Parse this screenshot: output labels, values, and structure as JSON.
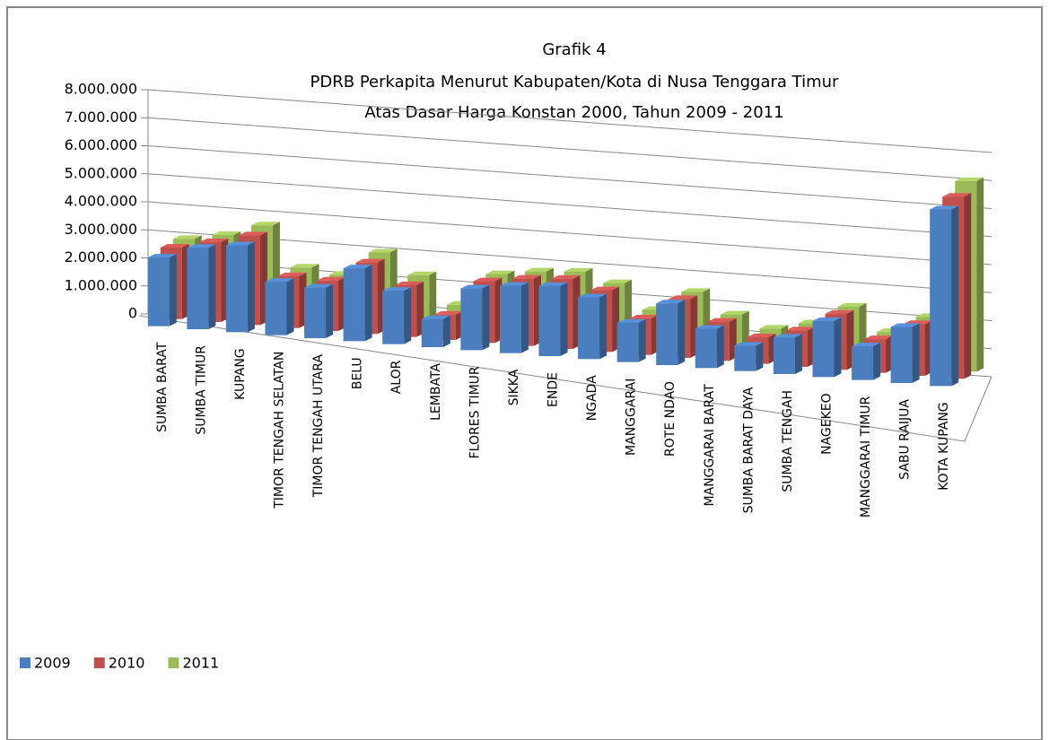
{
  "chart_data": {
    "type": "bar3d",
    "title": "Grafik 4",
    "subtitle": [
      "PDRB Perkapita Menurut Kabupaten/Kota di Nusa Tenggara Timur",
      "Atas Dasar Harga Konstan 2000, Tahun 2009 - 2011"
    ],
    "categories": [
      "SUMBA BARAT",
      "SUMBA TIMUR",
      "KUPANG",
      "TIMOR TENGAH SELATAN",
      "TIMOR TENGAH UTARA",
      "BELU",
      "ALOR",
      "LEMBATA",
      "FLORES TIMUR",
      "SIKKA",
      "ENDE",
      "NGADA",
      "MANGGARAI",
      "ROTE NDAO",
      "MANGGARAI BARAT",
      "SUMBA BARAT DAYA",
      "SUMBA TENGAH",
      "NAGEKEO",
      "MANGGARAI TIMUR",
      "SABU RAIJUA",
      "KOTA KUPANG"
    ],
    "series": [
      {
        "name": "2009",
        "color": "#4a7ebf",
        "values": [
          2450000,
          2900000,
          3100000,
          1900000,
          1800000,
          2600000,
          1900000,
          1000000,
          2200000,
          2400000,
          2500000,
          2200000,
          1400000,
          2200000,
          1400000,
          900000,
          1300000,
          2000000,
          1200000,
          2000000,
          6300000
        ]
      },
      {
        "name": "2010",
        "color": "#c0504d",
        "values": [
          2550000,
          2850000,
          3200000,
          1850000,
          1800000,
          2550000,
          1850000,
          900000,
          2200000,
          2400000,
          2500000,
          2200000,
          1300000,
          2100000,
          1400000,
          950000,
          1300000,
          2000000,
          1200000,
          1850000,
          6500000
        ]
      },
      {
        "name": "2011",
        "color": "#9bbb59",
        "values": [
          2600000,
          2850000,
          3300000,
          1900000,
          1750000,
          2650000,
          1950000,
          1000000,
          2200000,
          2400000,
          2500000,
          2200000,
          1350000,
          2100000,
          1400000,
          1000000,
          1300000,
          2000000,
          1200000,
          1850000,
          6800000
        ]
      }
    ],
    "ylim": [
      0,
      8000000
    ],
    "yticks": [
      0,
      {
        "value": 1000000,
        "label": "1.000.000"
      },
      {
        "value": 2000000,
        "label": "2.000.000"
      },
      {
        "value": 3000000,
        "label": "3.000.000"
      },
      {
        "value": 4000000,
        "label": "4.000.000"
      },
      {
        "value": 5000000,
        "label": "5.000.000"
      },
      {
        "value": 6000000,
        "label": "6.000.000"
      },
      {
        "value": 7000000,
        "label": "7.000.000"
      },
      {
        "value": 8000000,
        "label": "8.000.000"
      }
    ],
    "grid": true,
    "legend": "bottom-left"
  }
}
